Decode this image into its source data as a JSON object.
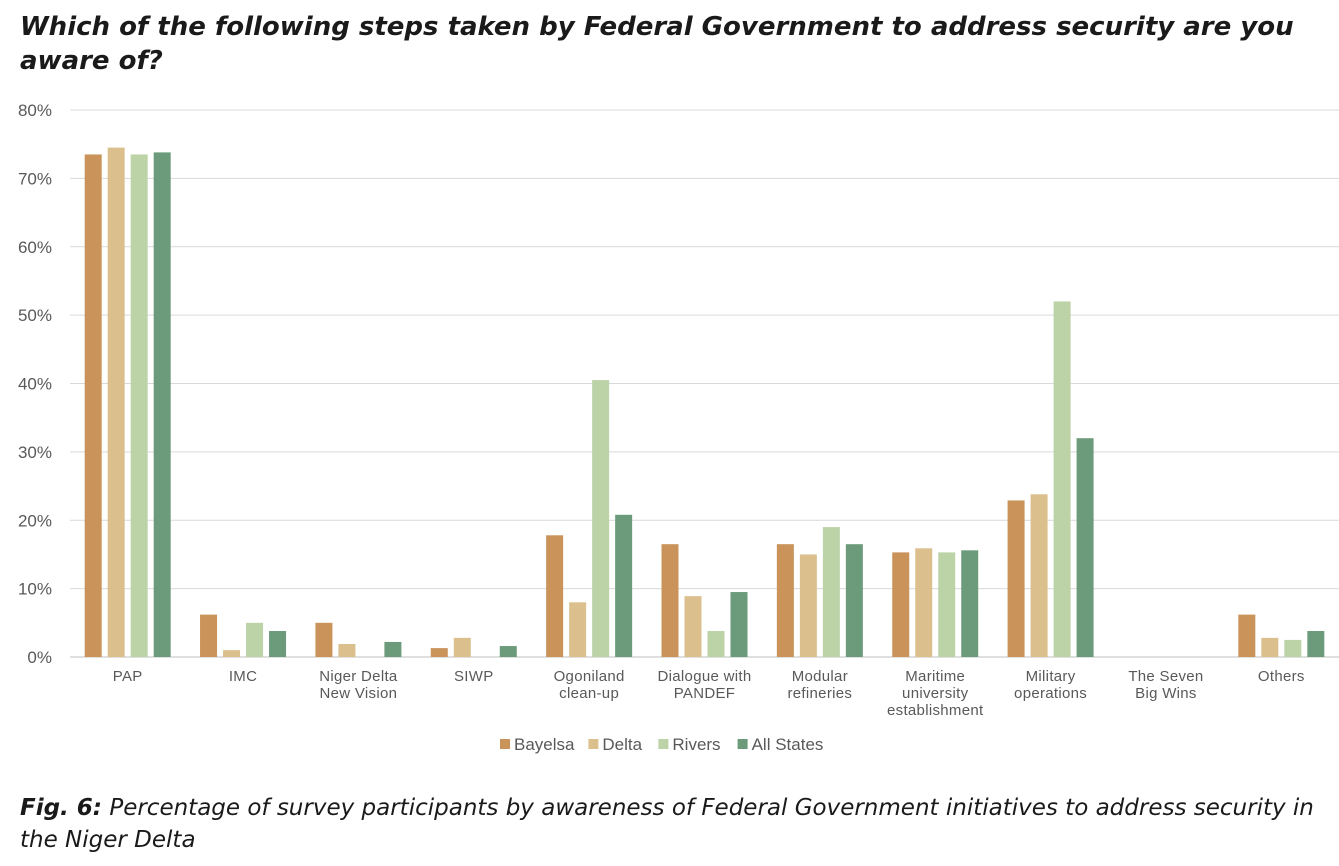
{
  "title": "Which of the following steps taken by Federal Government to address security are you aware of?",
  "caption": {
    "label": "Fig. 6:",
    "text": " Percentage of survey participants by awareness of Federal Government initiatives to address security in the Niger Delta"
  },
  "chart_data": {
    "type": "bar",
    "categories": [
      [
        "PAP"
      ],
      [
        "IMC"
      ],
      [
        "Niger Delta",
        "New Vision"
      ],
      [
        "SIWP"
      ],
      [
        "Ogoniland",
        "clean-up"
      ],
      [
        "Dialogue with",
        "PANDEF"
      ],
      [
        "Modular",
        "refineries"
      ],
      [
        "Maritime",
        "university",
        "establishment"
      ],
      [
        "Military",
        "operations"
      ],
      [
        "The Seven",
        "Big Wins"
      ],
      [
        "Others"
      ]
    ],
    "series": [
      {
        "name": "Bayelsa",
        "color": "#c9935a",
        "values": [
          73.5,
          6.2,
          5.0,
          1.3,
          17.8,
          16.5,
          16.5,
          15.3,
          22.9,
          0,
          6.2
        ]
      },
      {
        "name": "Delta",
        "color": "#dbc08e",
        "values": [
          74.5,
          1.0,
          1.9,
          2.8,
          8.0,
          8.9,
          15.0,
          15.9,
          23.8,
          0,
          2.8
        ]
      },
      {
        "name": "Rivers",
        "color": "#bcd3a8",
        "values": [
          73.5,
          5.0,
          0,
          0,
          40.5,
          3.8,
          19.0,
          15.3,
          52.0,
          0,
          2.5
        ]
      },
      {
        "name": "All States",
        "color": "#6b9b7a",
        "values": [
          73.8,
          3.8,
          2.2,
          1.6,
          20.8,
          9.5,
          16.5,
          15.6,
          32.0,
          0,
          3.8
        ]
      }
    ],
    "yticks": [
      "0%",
      "10%",
      "20%",
      "30%",
      "40%",
      "50%",
      "60%",
      "70%",
      "80%"
    ],
    "ylim": [
      0,
      80
    ],
    "grid": true,
    "legend_position": "bottom"
  }
}
